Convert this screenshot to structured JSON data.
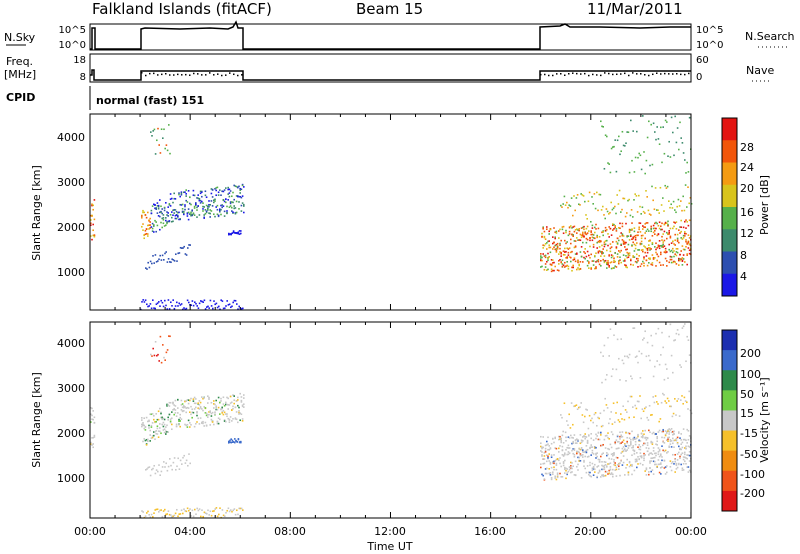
{
  "header": {
    "station": "Falkland Islands (fitACF)",
    "beam": "Beam 15",
    "date": "11/Mar/2011"
  },
  "nsky_panel": {
    "left_label": "N.Sky",
    "left_ticks": [
      "10^5",
      "10^0"
    ],
    "right_label": "N.Search",
    "right_ticks": [
      "10^5",
      "10^0"
    ]
  },
  "freq_panel": {
    "left_label_1": "Freq.",
    "left_label_2": "[MHz]",
    "left_ticks": [
      "18",
      "8"
    ],
    "right_label": "Nave",
    "right_ticks": [
      "60",
      "0"
    ]
  },
  "cpid_panel": {
    "label": "CPID",
    "mode_text": "normal (fast) 151"
  },
  "x_axis": {
    "ticks": [
      "00:00",
      "04:00",
      "08:00",
      "12:00",
      "16:00",
      "20:00",
      "00:00"
    ],
    "label": "Time UT"
  },
  "chart_data": [
    {
      "type": "heatmap",
      "name": "power",
      "ylabel": "Slant Range [km]",
      "yticks": [
        "1000",
        "2000",
        "3000",
        "4000"
      ],
      "ylim": [
        200,
        4500
      ],
      "xlim_hours": [
        0,
        24
      ],
      "colorbar": {
        "label": "Power [dB]",
        "ticks": [
          "4",
          "8",
          "12",
          "16",
          "20",
          "24",
          "28"
        ],
        "range": [
          0,
          32
        ],
        "colors": [
          "#1b18e6",
          "#2d4fb0",
          "#3c8a6c",
          "#56b04a",
          "#d8c41c",
          "#f49b12",
          "#f2560a",
          "#e31411"
        ]
      }
    },
    {
      "type": "heatmap",
      "name": "velocity",
      "ylabel": "Slant Range [km]",
      "yticks": [
        "1000",
        "2000",
        "3000",
        "4000"
      ],
      "ylim": [
        200,
        4500
      ],
      "xlim_hours": [
        0,
        24
      ],
      "colorbar": {
        "label": "Velocity [m s⁻¹]",
        "ticks": [
          "200",
          "100",
          "50",
          "15",
          "-15",
          "-50",
          "-100",
          "-200"
        ],
        "colors": [
          "#1c2fb0",
          "#3a6acb",
          "#2e8a4a",
          "#6fcd44",
          "#c8c8c8",
          "#f5c02a",
          "#f08c10",
          "#f0541a",
          "#e01818"
        ]
      }
    }
  ]
}
